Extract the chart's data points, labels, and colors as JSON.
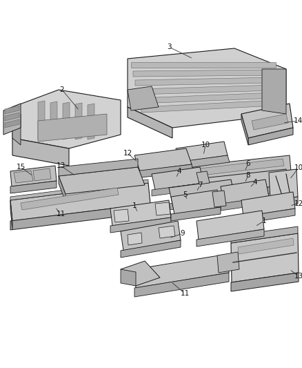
{
  "background_color": "#ffffff",
  "fig_width": 4.38,
  "fig_height": 5.33,
  "dpi": 100,
  "ec": "#1a1a1a",
  "fc_main": "#c8c8c8",
  "fc_dark": "#a0a0a0",
  "fc_mid": "#b4b4b4",
  "fc_light": "#d8d8d8",
  "label_fontsize": 7.5,
  "label_color": "#111111"
}
